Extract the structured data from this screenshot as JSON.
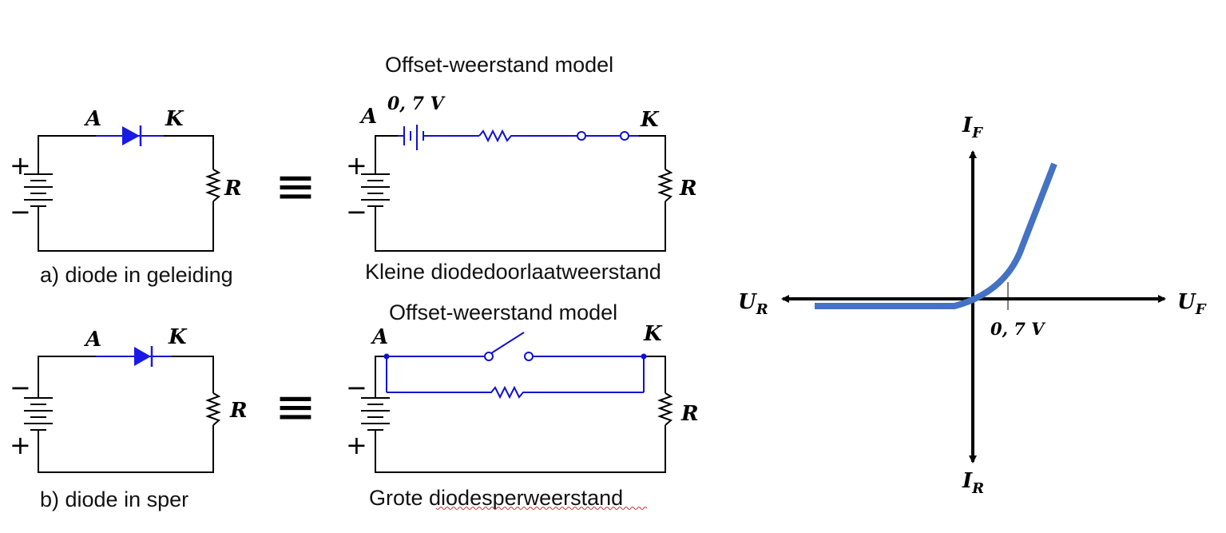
{
  "captions": {
    "top_left": "a) diode in geleiding",
    "top_mid_title": "Offset-weerstand model",
    "top_mid_bottom": "Kleine diodedoorlaatweerstand",
    "bottom_left": "b) diode in sper",
    "bottom_mid_title": "Offset-weerstand model",
    "bottom_mid_bottom": "Grote diodesperweerstand"
  },
  "labels": {
    "anode": "A",
    "cathode": "K",
    "resistor": "R",
    "plus": "+",
    "minus": "−",
    "equivalent": "≡",
    "offset_voltage": "0, 7 V"
  },
  "graph": {
    "y_pos": "I",
    "y_pos_sub": "F",
    "y_neg": "I",
    "y_neg_sub": "R",
    "x_pos": "U",
    "x_pos_sub": "F",
    "x_neg": "U",
    "x_neg_sub": "R",
    "tick_label": "0, 7 V",
    "curve_color": "#4472c4"
  },
  "colors": {
    "wire": "#000000",
    "model": "#1010d0"
  }
}
